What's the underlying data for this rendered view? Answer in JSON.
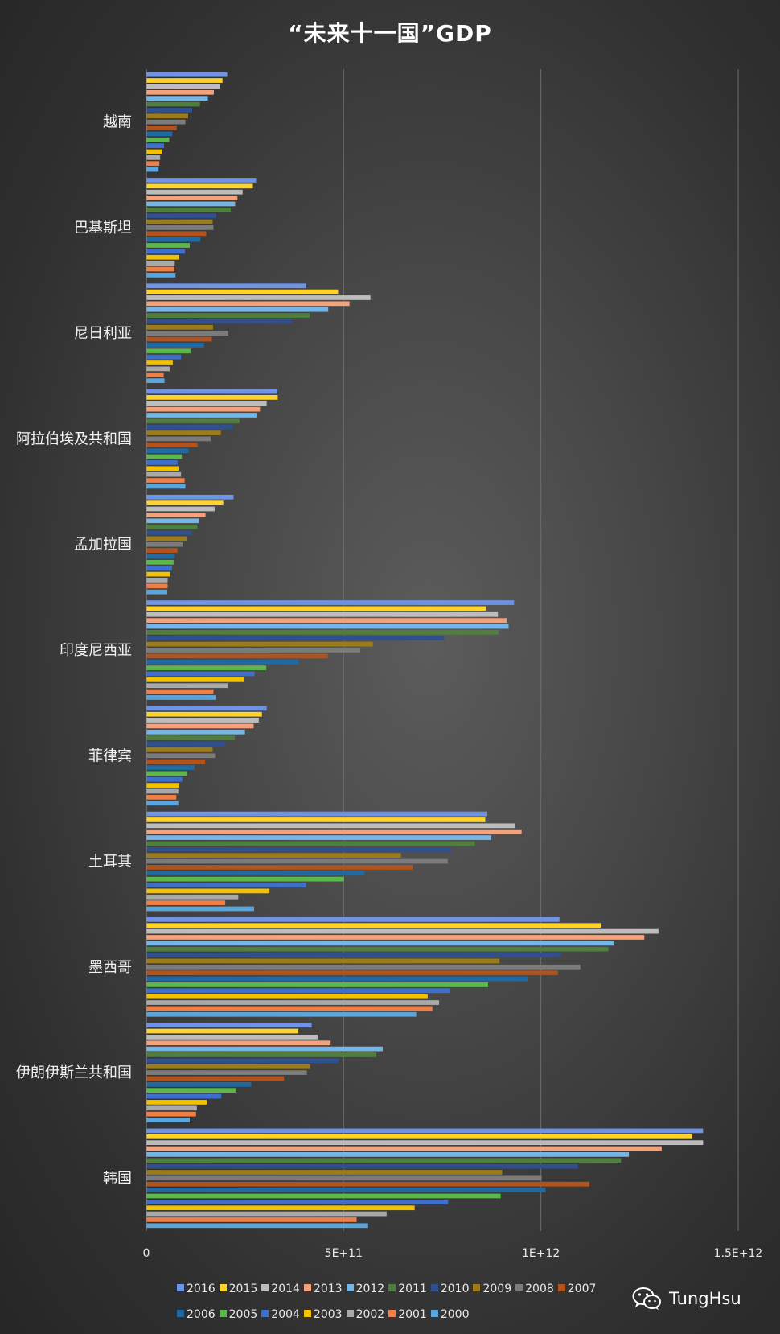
{
  "chart_data": {
    "type": "bar",
    "orientation": "horizontal",
    "title": "“未来十一国”GDP",
    "categories": [
      "越南",
      "巴基斯坦",
      "尼日利亚",
      "阿拉伯埃及共和国",
      "孟加拉国",
      "印度尼西亚",
      "菲律宾",
      "土耳其",
      "墨西哥",
      "伊朗伊斯兰共和国",
      "韩国"
    ],
    "xlim": [
      0,
      1500000000000
    ],
    "xticks": [
      0,
      500000000000,
      1000000000000,
      1500000000000
    ],
    "xtick_labels": [
      "0",
      "5E+11",
      "1E+12",
      "1.5E+12"
    ],
    "grid": true,
    "legend_position": "bottom",
    "series": [
      {
        "name": "2016",
        "color": "#6f94e6",
        "values": [
          205000000000.0,
          278000000000.0,
          405000000000.0,
          332000000000.0,
          221000000000.0,
          932000000000.0,
          305000000000.0,
          864000000000.0,
          1047000000000.0,
          419000000000.0,
          1411000000000.0
        ]
      },
      {
        "name": "2015",
        "color": "#ffd42a",
        "values": [
          193000000000.0,
          270000000000.0,
          486000000000.0,
          333000000000.0,
          195000000000.0,
          861000000000.0,
          293000000000.0,
          859000000000.0,
          1152000000000.0,
          385000000000.0,
          1383000000000.0
        ]
      },
      {
        "name": "2014",
        "color": "#bdbdbd",
        "values": [
          186000000000.0,
          244000000000.0,
          568000000000.0,
          305000000000.0,
          173000000000.0,
          891000000000.0,
          285000000000.0,
          934000000000.0,
          1298000000000.0,
          434000000000.0,
          1411000000000.0
        ]
      },
      {
        "name": "2013",
        "color": "#f4a27c",
        "values": [
          171000000000.0,
          231000000000.0,
          515000000000.0,
          288000000000.0,
          150000000000.0,
          913000000000.0,
          272000000000.0,
          951000000000.0,
          1262000000000.0,
          467000000000.0,
          1306000000000.0
        ]
      },
      {
        "name": "2012",
        "color": "#76b6e6",
        "values": [
          156000000000.0,
          225000000000.0,
          461000000000.0,
          279000000000.0,
          133000000000.0,
          918000000000.0,
          250000000000.0,
          874000000000.0,
          1186000000000.0,
          599000000000.0,
          1223000000000.0
        ]
      },
      {
        "name": "2011",
        "color": "#4e7f3c",
        "values": [
          136000000000.0,
          214000000000.0,
          414000000000.0,
          236000000000.0,
          129000000000.0,
          893000000000.0,
          224000000000.0,
          833000000000.0,
          1171000000000.0,
          583000000000.0,
          1203000000000.0
        ]
      },
      {
        "name": "2010",
        "color": "#2f4f8f",
        "values": [
          116000000000.0,
          177000000000.0,
          369000000000.0,
          219000000000.0,
          115000000000.0,
          755000000000.0,
          200000000000.0,
          772000000000.0,
          1051000000000.0,
          487000000000.0,
          1094000000000.0
        ]
      },
      {
        "name": "2009",
        "color": "#9b7b1a",
        "values": [
          106000000000.0,
          168000000000.0,
          169000000000.0,
          189000000000.0,
          102000000000.0,
          574000000000.0,
          168000000000.0,
          645000000000.0,
          895000000000.0,
          415000000000.0,
          902000000000.0
        ]
      },
      {
        "name": "2008",
        "color": "#7b7b7b",
        "values": [
          99000000000.0,
          170000000000.0,
          208000000000.0,
          163000000000.0,
          92000000000.0,
          542000000000.0,
          174000000000.0,
          764000000000.0,
          1100000000000.0,
          407000000000.0,
          1002000000000.0
        ]
      },
      {
        "name": "2007",
        "color": "#b2521d",
        "values": [
          77000000000.0,
          152000000000.0,
          166000000000.0,
          130000000000.0,
          79000000000.0,
          460000000000.0,
          149000000000.0,
          675000000000.0,
          1043000000000.0,
          349000000000.0,
          1123000000000.0
        ]
      },
      {
        "name": "2006",
        "color": "#1f6aa3",
        "values": [
          66000000000.0,
          137000000000.0,
          146000000000.0,
          107000000000.0,
          72000000000.0,
          386000000000.0,
          122000000000.0,
          553000000000.0,
          966000000000.0,
          266000000000.0,
          1012000000000.0
        ]
      },
      {
        "name": "2005",
        "color": "#5cb84a",
        "values": [
          58000000000.0,
          110000000000.0,
          112000000000.0,
          90000000000.0,
          69000000000.0,
          304000000000.0,
          103000000000.0,
          501000000000.0,
          866000000000.0,
          226000000000.0,
          898000000000.0
        ]
      },
      {
        "name": "2004",
        "color": "#3d6fcf",
        "values": [
          45000000000.0,
          98000000000.0,
          88000000000.0,
          79000000000.0,
          65000000000.0,
          274000000000.0,
          91000000000.0,
          405000000000.0,
          770000000000.0,
          190000000000.0,
          765000000000.0
        ]
      },
      {
        "name": "2003",
        "color": "#f2c200",
        "values": [
          39000000000.0,
          83000000000.0,
          67000000000.0,
          82000000000.0,
          60000000000.0,
          248000000000.0,
          83000000000.0,
          312000000000.0,
          713000000000.0,
          153000000000.0,
          680000000000.0
        ]
      },
      {
        "name": "2002",
        "color": "#a9a9a9",
        "values": [
          35000000000.0,
          72000000000.0,
          59000000000.0,
          88000000000.0,
          54000000000.0,
          206000000000.0,
          81000000000.0,
          233000000000.0,
          742000000000.0,
          128000000000.0,
          609000000000.0
        ]
      },
      {
        "name": "2001",
        "color": "#ef7f45",
        "values": [
          33000000000.0,
          71000000000.0,
          44000000000.0,
          97000000000.0,
          54000000000.0,
          170000000000.0,
          76000000000.0,
          200000000000.0,
          725000000000.0,
          126000000000.0,
          533000000000.0
        ]
      },
      {
        "name": "2000",
        "color": "#5aa6dc",
        "values": [
          31000000000.0,
          74000000000.0,
          46000000000.0,
          99000000000.0,
          53000000000.0,
          176000000000.0,
          81000000000.0,
          273000000000.0,
          684000000000.0,
          110000000000.0,
          562000000000.0
        ]
      }
    ],
    "legend_order": [
      "2016",
      "2015",
      "2014",
      "2013",
      "2012",
      "2011",
      "2010",
      "2009",
      "2008",
      "2007",
      "2006",
      "2005",
      "2004",
      "2003",
      "2002",
      "2001",
      "2000"
    ]
  },
  "watermark": {
    "text": "TungHsu",
    "icon": "wechat-icon"
  }
}
